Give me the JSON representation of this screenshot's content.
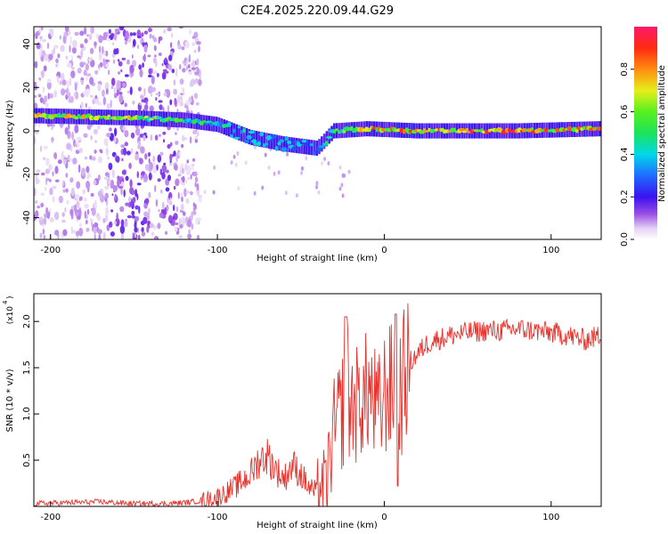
{
  "title": "C2E4.2025.220.09.44.G29",
  "chart_data": [
    {
      "type": "heatmap",
      "xlabel": "Height of straight line (km)",
      "ylabel": "Frequency (Hz)",
      "xlim": [
        -210,
        130
      ],
      "ylim": [
        -50,
        48
      ],
      "xticks": [
        -200,
        -100,
        0,
        100
      ],
      "yticks": [
        -40,
        -20,
        0,
        20,
        40
      ],
      "colorbar": {
        "label": "Normalized spectral amplitude",
        "range": [
          0.0,
          1.0
        ],
        "ticks": [
          "0.0",
          "0.2",
          "0.4",
          "0.6",
          "0.8"
        ],
        "tick_values": [
          0.0,
          0.2,
          0.4,
          0.6,
          0.8
        ]
      },
      "ridge": {
        "description_points": [
          {
            "x": -210,
            "freq": 7,
            "amp": 0.75
          },
          {
            "x": -150,
            "freq": 6,
            "amp": 0.7
          },
          {
            "x": -120,
            "freq": 5,
            "amp": 0.55
          },
          {
            "x": -100,
            "freq": 3,
            "amp": 0.5
          },
          {
            "x": -80,
            "freq": -3,
            "amp": 0.45
          },
          {
            "x": -60,
            "freq": -6,
            "amp": 0.4
          },
          {
            "x": -40,
            "freq": -8,
            "amp": 0.35
          },
          {
            "x": -30,
            "freq": 0,
            "amp": 0.55
          },
          {
            "x": -10,
            "freq": 1,
            "amp": 0.8
          },
          {
            "x": 20,
            "freq": 0,
            "amp": 0.9
          },
          {
            "x": 80,
            "freq": 0,
            "amp": 0.9
          },
          {
            "x": 130,
            "freq": 1,
            "amp": 0.8
          }
        ]
      }
    },
    {
      "type": "line",
      "xlabel": "Height of straight line (km)",
      "ylabel": "SNR (10 * v/v)",
      "yscale_label": "(x10",
      "yscale_exp": "4",
      "xlim": [
        -210,
        130
      ],
      "ylim": [
        0.0,
        2.3
      ],
      "xticks": [
        -200,
        -100,
        0,
        100
      ],
      "yticks": [
        0.5,
        1.0,
        1.5,
        2.0
      ],
      "yticklabels": [
        "0.5",
        "1.0",
        "1.5",
        "2.0"
      ],
      "series": [
        {
          "color": "#e8322c",
          "x": [
            -210,
            -190,
            -170,
            -150,
            -130,
            -120,
            -110,
            -100,
            -90,
            -80,
            -75,
            -70,
            -65,
            -60,
            -55,
            -50,
            -45,
            -40,
            -38,
            -35,
            -32,
            -30,
            -28,
            -26,
            -24,
            -22,
            -20,
            -18,
            -16,
            -14,
            -12,
            -10,
            -8,
            -6,
            -4,
            -2,
            0,
            2,
            5,
            8,
            10,
            12,
            15,
            20,
            25,
            30,
            35,
            40,
            50,
            60,
            70,
            80,
            90,
            100,
            110,
            120,
            130
          ],
          "y": [
            0.03,
            0.04,
            0.05,
            0.03,
            0.03,
            0.04,
            0.06,
            0.1,
            0.2,
            0.35,
            0.5,
            0.55,
            0.4,
            0.3,
            0.45,
            0.35,
            0.2,
            0.15,
            0.25,
            0.2,
            0.6,
            0.8,
            0.9,
            1.0,
            1.1,
            1.3,
            1.0,
            1.2,
            1.05,
            1.25,
            1.1,
            1.3,
            1.2,
            1.1,
            1.0,
            1.05,
            1.2,
            1.3,
            1.25,
            1.35,
            1.2,
            1.4,
            1.55,
            1.65,
            1.75,
            1.8,
            1.82,
            1.85,
            1.88,
            1.9,
            1.9,
            1.92,
            1.9,
            1.88,
            1.85,
            1.8,
            1.85
          ]
        }
      ]
    }
  ]
}
